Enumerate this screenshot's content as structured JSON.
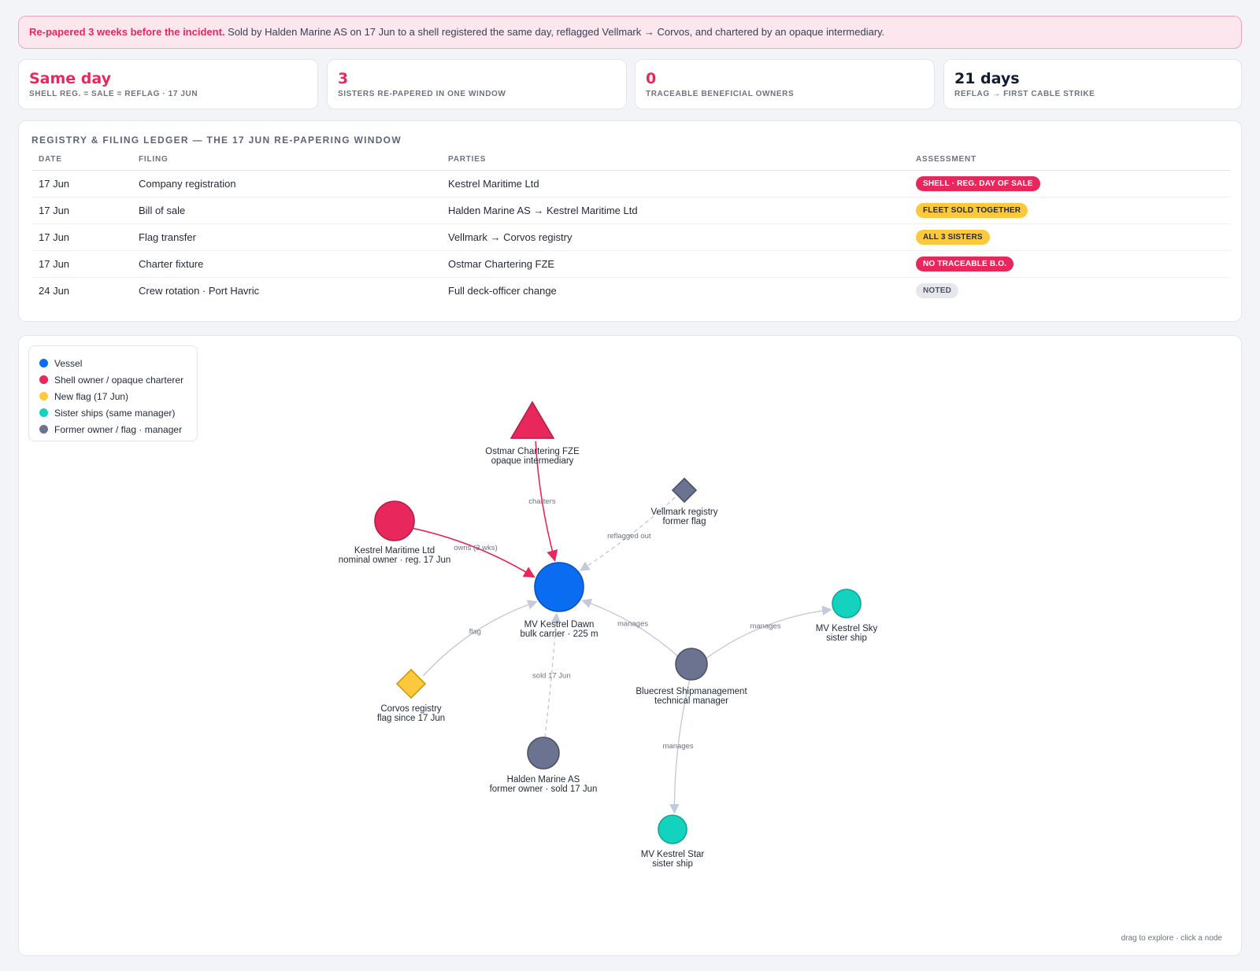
{
  "alert": {
    "highlight": "Re-papered 3 weeks before the incident.",
    "text": " Sold by Halden Marine AS on 17 Jun to a shell registered the same day, reflagged Vellmark → Corvos, and chartered by an opaque intermediary."
  },
  "stats": [
    {
      "value": "Same day",
      "label": "Shell reg. = sale = reflag · 17 Jun",
      "color": "#e8285c"
    },
    {
      "value": "3",
      "label": "Sisters re-papered in one window",
      "color": "#e8285c"
    },
    {
      "value": "0",
      "label": "Traceable beneficial owners",
      "color": "#e8285c"
    },
    {
      "value": "21 days",
      "label": "Reflag → first cable strike",
      "color": "#111c33"
    }
  ],
  "ledger": {
    "title": "Registry & filing ledger — the 17 Jun re-papering window",
    "columns": [
      "Date",
      "Filing",
      "Parties",
      "Assessment"
    ],
    "rows": [
      {
        "date": "17 Jun",
        "filing": "Company registration",
        "parties": "Kestrel Maritime Ltd",
        "assessment": "SHELL · REG. DAY OF SALE",
        "tone": "red"
      },
      {
        "date": "17 Jun",
        "filing": "Bill of sale",
        "parties": "Halden Marine AS → Kestrel Maritime Ltd",
        "assessment": "FLEET SOLD TOGETHER",
        "tone": "yellow"
      },
      {
        "date": "17 Jun",
        "filing": "Flag transfer",
        "parties": "Vellmark → Corvos registry",
        "assessment": "ALL 3 SISTERS",
        "tone": "yellow"
      },
      {
        "date": "17 Jun",
        "filing": "Charter fixture",
        "parties": "Ostmar Chartering FZE",
        "assessment": "NO TRACEABLE B.O.",
        "tone": "red"
      },
      {
        "date": "24 Jun",
        "filing": "Crew rotation · Port Havric",
        "parties": "Full deck-officer change",
        "assessment": "NOTED",
        "tone": "grey"
      }
    ]
  },
  "legend": [
    {
      "label": "Vessel",
      "color": "#0a6cf0"
    },
    {
      "label": "Shell owner / opaque charterer",
      "color": "#e8285c"
    },
    {
      "label": "New flag (17 Jun)",
      "color": "#fbc93b"
    },
    {
      "label": "Sister ships (same manager)",
      "color": "#13d3bf"
    },
    {
      "label": "Former owner / flag · manager",
      "color": "#6b7390"
    }
  ],
  "graph": {
    "nodes": [
      {
        "id": "dawn",
        "line1": "MV Kestrel Dawn",
        "line2": "bulk carrier · 225 m",
        "shape": "circle",
        "color": "#0a6cf0",
        "stroke": "#0753bd"
      },
      {
        "id": "ostmar",
        "line1": "Ostmar Chartering FZE",
        "line2": "opaque intermediary",
        "shape": "triangle",
        "color": "#e8285c",
        "stroke": "#b81c47"
      },
      {
        "id": "kestrel",
        "line1": "Kestrel Maritime Ltd",
        "line2": "nominal owner · reg. 17 Jun",
        "shape": "circle",
        "color": "#e8285c",
        "stroke": "#b81c47"
      },
      {
        "id": "vellmark",
        "line1": "Vellmark registry",
        "line2": "former flag",
        "shape": "diamond",
        "color": "#6b7390",
        "stroke": "#4b5168"
      },
      {
        "id": "corvos",
        "line1": "Corvos registry",
        "line2": "flag since 17 Jun",
        "shape": "diamond",
        "color": "#fbc93b",
        "stroke": "#d19a0c"
      },
      {
        "id": "halden",
        "line1": "Halden Marine AS",
        "line2": "former owner · sold 17 Jun",
        "shape": "circle",
        "color": "#6b7390",
        "stroke": "#4b5168"
      },
      {
        "id": "bluecrest",
        "line1": "Bluecrest Shipmanagement",
        "line2": "technical manager",
        "shape": "circle",
        "color": "#6b7390",
        "stroke": "#4b5168"
      },
      {
        "id": "sky",
        "line1": "MV Kestrel Sky",
        "line2": "sister ship",
        "shape": "circle",
        "color": "#13d3bf",
        "stroke": "#0ea593"
      },
      {
        "id": "star",
        "line1": "MV Kestrel Star",
        "line2": "sister ship",
        "shape": "circle",
        "color": "#13d3bf",
        "stroke": "#0ea593"
      }
    ],
    "edges": [
      {
        "from": "ostmar",
        "to": "dawn",
        "label": "charters",
        "style": "red"
      },
      {
        "from": "kestrel",
        "to": "dawn",
        "label": "owns (3 wks)",
        "style": "red"
      },
      {
        "from": "vellmark",
        "to": "dawn",
        "label": "reflagged out",
        "style": "dashed"
      },
      {
        "from": "corvos",
        "to": "dawn",
        "label": "flag",
        "style": "grey"
      },
      {
        "from": "halden",
        "to": "dawn",
        "label": "sold 17 Jun",
        "style": "dashed"
      },
      {
        "from": "bluecrest",
        "to": "dawn",
        "label": "manages",
        "style": "grey"
      },
      {
        "from": "bluecrest",
        "to": "sky",
        "label": "manages",
        "style": "grey"
      },
      {
        "from": "bluecrest",
        "to": "star",
        "label": "manages",
        "style": "grey"
      }
    ],
    "hint": "drag to explore · click a node"
  }
}
